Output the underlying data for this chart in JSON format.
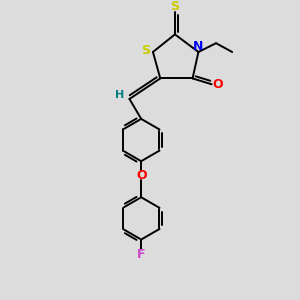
{
  "bg_color": "#dcdcdc",
  "bond_color": "#000000",
  "S_color": "#cccc00",
  "N_color": "#0000ff",
  "O_color": "#ff0000",
  "F_color": "#cc44cc",
  "H_color": "#008080",
  "figsize": [
    3.0,
    3.0
  ],
  "dpi": 100,
  "xlim": [
    0,
    10
  ],
  "ylim": [
    0,
    10
  ]
}
